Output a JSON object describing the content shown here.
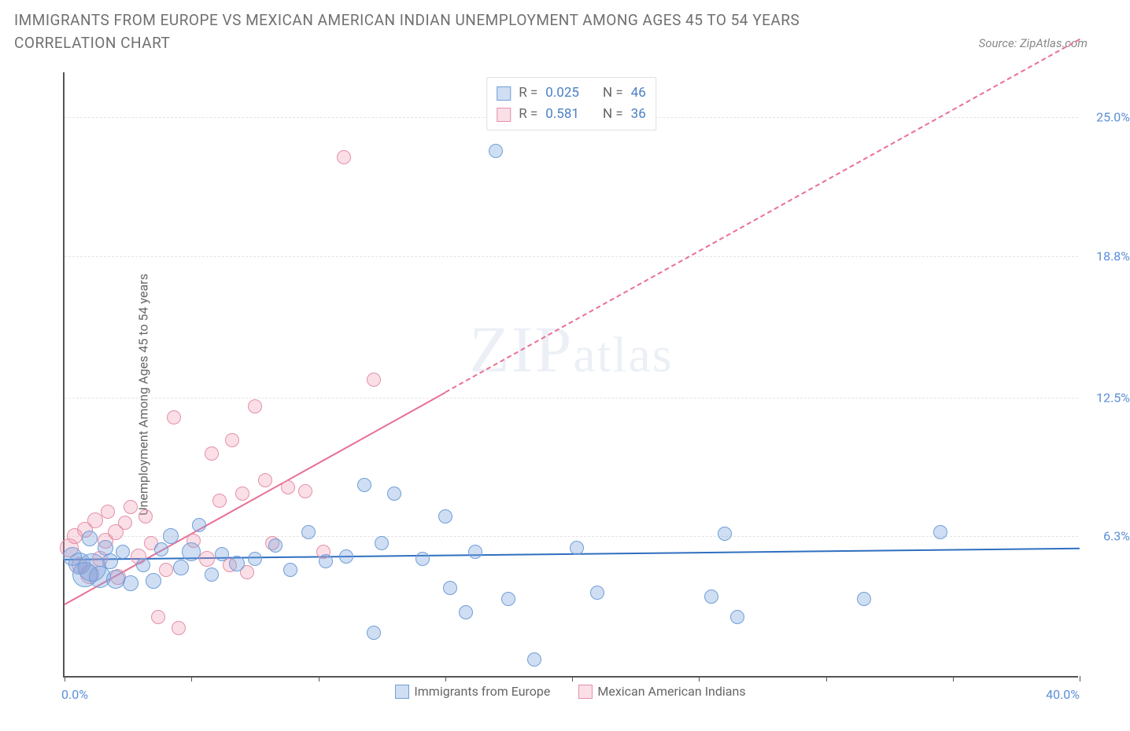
{
  "title": "IMMIGRANTS FROM EUROPE VS MEXICAN AMERICAN INDIAN UNEMPLOYMENT AMONG AGES 45 TO 54 YEARS CORRELATION CHART",
  "source_label": "Source: ZipAtlas.com",
  "watermark": {
    "part1": "ZIP",
    "part2": "atlas"
  },
  "axes": {
    "ylabel": "Unemployment Among Ages 45 to 54 years",
    "x": {
      "min": 0,
      "max": 40,
      "label_min": "0.0%",
      "label_max": "40.0%",
      "ticks_at": [
        0,
        5,
        10,
        15,
        20,
        25,
        30,
        35,
        40
      ]
    },
    "y": {
      "min": 0,
      "max": 27,
      "grid_at": [
        6.3,
        12.5,
        18.8,
        25.0
      ],
      "labels": [
        "6.3%",
        "12.5%",
        "18.8%",
        "25.0%"
      ]
    }
  },
  "colors": {
    "blue_fill": "rgba(120,160,220,0.35)",
    "blue_stroke": "#6f9fd8",
    "blue_line": "#2f6fc0",
    "pink_fill": "rgba(240,150,175,0.30)",
    "pink_stroke": "#e590a8",
    "pink_line": "#e87095",
    "tick_label": "#5a8fd6",
    "grid": "#e5e5e5"
  },
  "legend_box": {
    "rows": [
      {
        "swatch": "blue",
        "r_label": "R =",
        "r": "0.025",
        "n_label": "N =",
        "n": "46"
      },
      {
        "swatch": "pink",
        "r_label": "R =",
        "r": "0.581",
        "n_label": "N =",
        "n": "36"
      }
    ]
  },
  "bottom_legend": {
    "items": [
      {
        "swatch": "blue",
        "label": "Immigrants from Europe"
      },
      {
        "swatch": "pink",
        "label": "Mexican American Indians"
      }
    ]
  },
  "trend_lines": {
    "blue": {
      "x1": 0,
      "y1": 5.3,
      "x2": 40,
      "y2": 5.8,
      "solid_to_x": 40,
      "color": "#2f6fc0"
    },
    "pink": {
      "x1": 0,
      "y1": 3.3,
      "x2": 40,
      "y2": 28.5,
      "solid_to_x": 15,
      "color": "#e87095"
    }
  },
  "series": {
    "blue": {
      "fill": "rgba(120,160,220,0.35)",
      "stroke": "#6f9fd8",
      "points": [
        {
          "x": 0.3,
          "y": 5.4,
          "r": 12
        },
        {
          "x": 0.6,
          "y": 5.1,
          "r": 14
        },
        {
          "x": 0.8,
          "y": 4.6,
          "r": 16
        },
        {
          "x": 1.0,
          "y": 6.2,
          "r": 10
        },
        {
          "x": 1.1,
          "y": 4.9,
          "r": 18
        },
        {
          "x": 1.4,
          "y": 4.5,
          "r": 14
        },
        {
          "x": 1.6,
          "y": 5.8,
          "r": 10
        },
        {
          "x": 1.8,
          "y": 5.2,
          "r": 10
        },
        {
          "x": 2.0,
          "y": 4.4,
          "r": 12
        },
        {
          "x": 2.3,
          "y": 5.6,
          "r": 9
        },
        {
          "x": 2.6,
          "y": 4.2,
          "r": 10
        },
        {
          "x": 3.1,
          "y": 5.0,
          "r": 9
        },
        {
          "x": 3.5,
          "y": 4.3,
          "r": 10
        },
        {
          "x": 3.8,
          "y": 5.7,
          "r": 9
        },
        {
          "x": 4.2,
          "y": 6.3,
          "r": 10
        },
        {
          "x": 4.6,
          "y": 4.9,
          "r": 10
        },
        {
          "x": 5.0,
          "y": 5.6,
          "r": 12
        },
        {
          "x": 5.3,
          "y": 6.8,
          "r": 9
        },
        {
          "x": 5.8,
          "y": 4.6,
          "r": 9
        },
        {
          "x": 6.2,
          "y": 5.5,
          "r": 9
        },
        {
          "x": 6.8,
          "y": 5.1,
          "r": 10
        },
        {
          "x": 7.5,
          "y": 5.3,
          "r": 9
        },
        {
          "x": 8.3,
          "y": 5.9,
          "r": 9
        },
        {
          "x": 8.9,
          "y": 4.8,
          "r": 9
        },
        {
          "x": 9.6,
          "y": 6.5,
          "r": 9
        },
        {
          "x": 10.3,
          "y": 5.2,
          "r": 9
        },
        {
          "x": 11.1,
          "y": 5.4,
          "r": 9
        },
        {
          "x": 11.8,
          "y": 8.6,
          "r": 9
        },
        {
          "x": 12.5,
          "y": 6.0,
          "r": 9
        },
        {
          "x": 12.2,
          "y": 2.0,
          "r": 9
        },
        {
          "x": 13.0,
          "y": 8.2,
          "r": 9
        },
        {
          "x": 14.1,
          "y": 5.3,
          "r": 9
        },
        {
          "x": 15.0,
          "y": 7.2,
          "r": 9
        },
        {
          "x": 15.2,
          "y": 4.0,
          "r": 9
        },
        {
          "x": 15.8,
          "y": 2.9,
          "r": 9
        },
        {
          "x": 16.2,
          "y": 5.6,
          "r": 9
        },
        {
          "x": 17.0,
          "y": 23.5,
          "r": 9
        },
        {
          "x": 17.5,
          "y": 3.5,
          "r": 9
        },
        {
          "x": 18.5,
          "y": 0.8,
          "r": 9
        },
        {
          "x": 20.2,
          "y": 5.8,
          "r": 9
        },
        {
          "x": 21.0,
          "y": 3.8,
          "r": 9
        },
        {
          "x": 25.5,
          "y": 3.6,
          "r": 9
        },
        {
          "x": 26.0,
          "y": 6.4,
          "r": 9
        },
        {
          "x": 26.5,
          "y": 2.7,
          "r": 9
        },
        {
          "x": 31.5,
          "y": 3.5,
          "r": 9
        },
        {
          "x": 34.5,
          "y": 6.5,
          "r": 9
        }
      ]
    },
    "pink": {
      "fill": "rgba(240,150,175,0.30)",
      "stroke": "#e590a8",
      "points": [
        {
          "x": 0.2,
          "y": 5.8,
          "r": 12
        },
        {
          "x": 0.4,
          "y": 6.3,
          "r": 10
        },
        {
          "x": 0.6,
          "y": 5.0,
          "r": 10
        },
        {
          "x": 0.8,
          "y": 6.6,
          "r": 10
        },
        {
          "x": 1.0,
          "y": 4.6,
          "r": 12
        },
        {
          "x": 1.2,
          "y": 7.0,
          "r": 10
        },
        {
          "x": 1.4,
          "y": 5.3,
          "r": 10
        },
        {
          "x": 1.6,
          "y": 6.1,
          "r": 10
        },
        {
          "x": 1.7,
          "y": 7.4,
          "r": 9
        },
        {
          "x": 2.0,
          "y": 6.5,
          "r": 10
        },
        {
          "x": 2.1,
          "y": 4.5,
          "r": 10
        },
        {
          "x": 2.4,
          "y": 6.9,
          "r": 9
        },
        {
          "x": 2.6,
          "y": 7.6,
          "r": 9
        },
        {
          "x": 2.9,
          "y": 5.4,
          "r": 10
        },
        {
          "x": 3.2,
          "y": 7.2,
          "r": 9
        },
        {
          "x": 3.4,
          "y": 6.0,
          "r": 9
        },
        {
          "x": 3.7,
          "y": 2.7,
          "r": 9
        },
        {
          "x": 4.0,
          "y": 4.8,
          "r": 9
        },
        {
          "x": 4.3,
          "y": 11.6,
          "r": 9
        },
        {
          "x": 4.5,
          "y": 2.2,
          "r": 9
        },
        {
          "x": 5.1,
          "y": 6.1,
          "r": 9
        },
        {
          "x": 5.6,
          "y": 5.3,
          "r": 10
        },
        {
          "x": 5.8,
          "y": 10.0,
          "r": 9
        },
        {
          "x": 6.1,
          "y": 7.9,
          "r": 9
        },
        {
          "x": 6.5,
          "y": 5.0,
          "r": 9
        },
        {
          "x": 6.6,
          "y": 10.6,
          "r": 9
        },
        {
          "x": 7.0,
          "y": 8.2,
          "r": 9
        },
        {
          "x": 7.2,
          "y": 4.7,
          "r": 9
        },
        {
          "x": 7.5,
          "y": 12.1,
          "r": 9
        },
        {
          "x": 7.9,
          "y": 8.8,
          "r": 9
        },
        {
          "x": 8.2,
          "y": 6.0,
          "r": 9
        },
        {
          "x": 8.8,
          "y": 8.5,
          "r": 9
        },
        {
          "x": 9.5,
          "y": 8.3,
          "r": 9
        },
        {
          "x": 11.0,
          "y": 23.2,
          "r": 9
        },
        {
          "x": 12.2,
          "y": 13.3,
          "r": 9
        },
        {
          "x": 10.2,
          "y": 5.6,
          "r": 9
        }
      ]
    }
  }
}
